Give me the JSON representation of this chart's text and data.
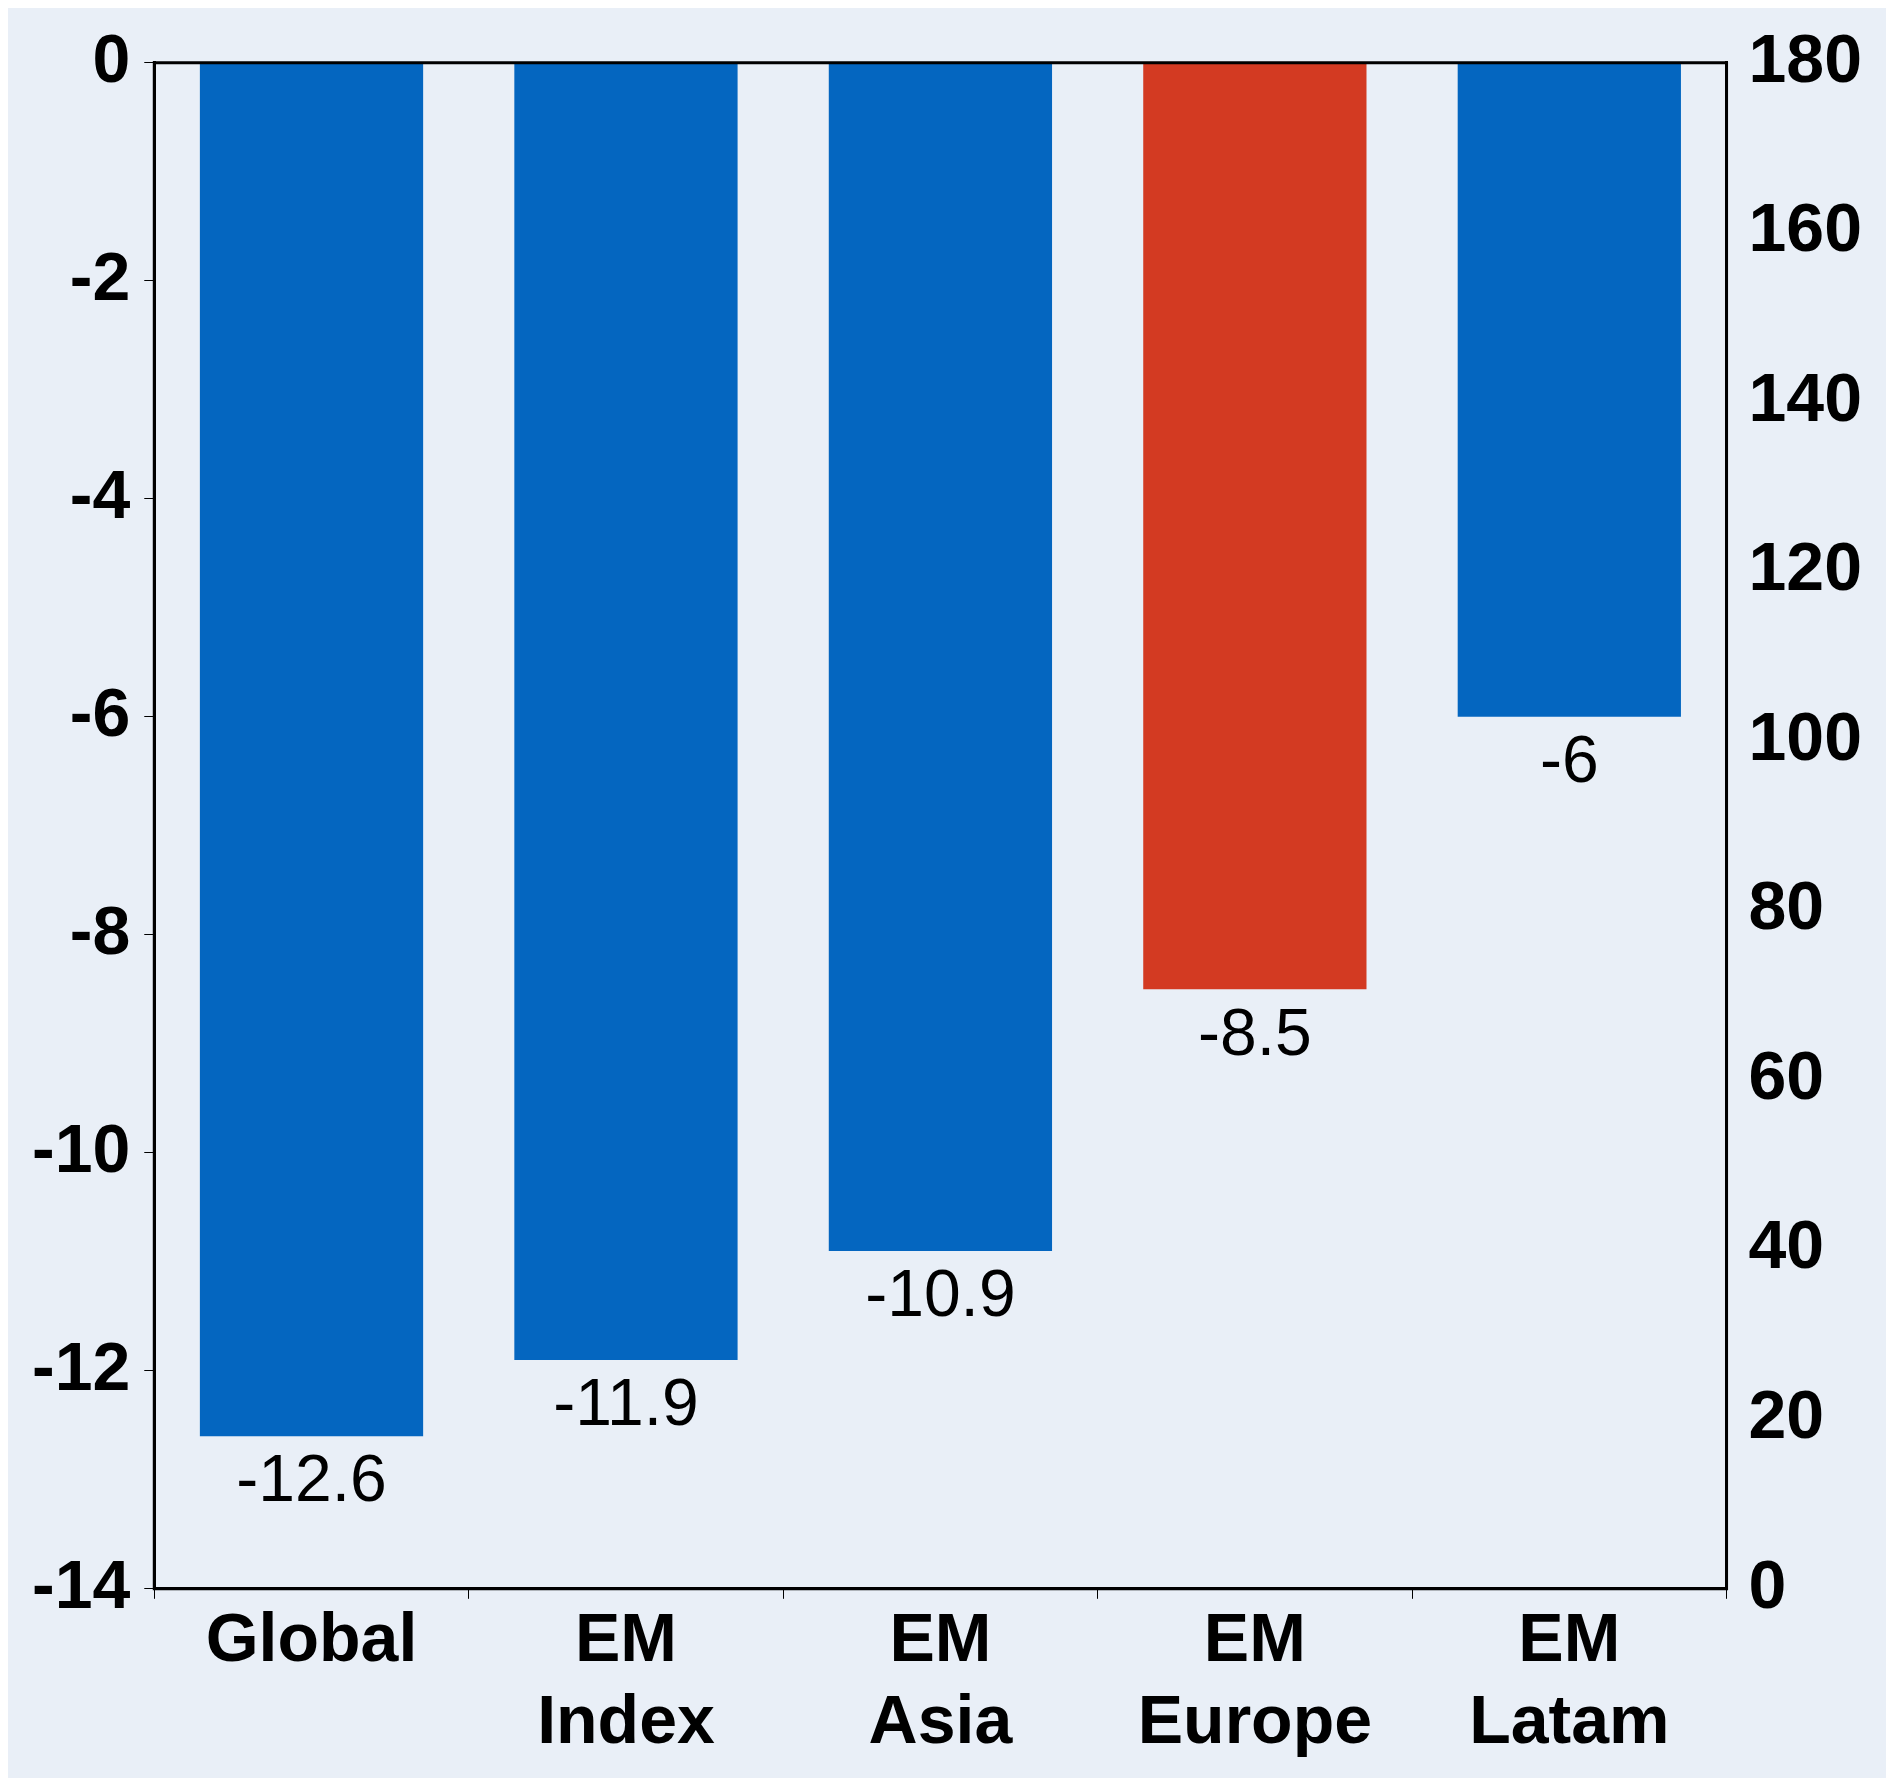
{
  "chart_data": {
    "type": "bar",
    "categories": [
      "Global",
      "EM Index",
      "EM Asia",
      "EM Europe",
      "EM Latam"
    ],
    "values": [
      -12.6,
      -11.9,
      -10.9,
      -8.5,
      -6
    ],
    "colors": [
      "#0466c0",
      "#0466c0",
      "#0466c0",
      "#d33a22",
      "#0466c0"
    ],
    "ylim": [
      -14,
      0
    ],
    "yticks": [
      -14,
      -12,
      -10,
      -8,
      -6,
      -4,
      -2,
      0
    ],
    "y2lim": [
      0,
      180
    ],
    "y2ticks": [
      0,
      20,
      40,
      60,
      80,
      100,
      120,
      140,
      160,
      180
    ],
    "data_labels": true,
    "grid": false,
    "legend": false
  }
}
